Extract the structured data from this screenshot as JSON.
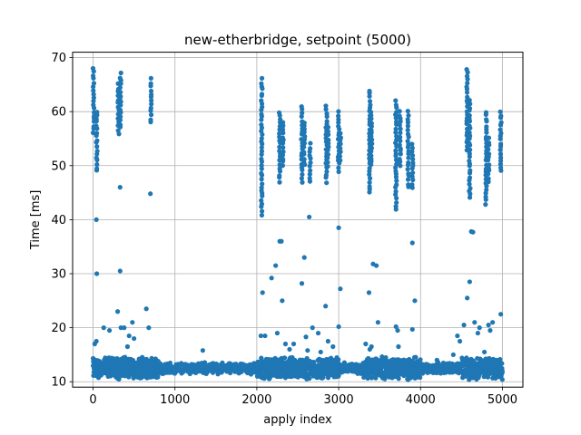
{
  "chart_data": {
    "type": "scatter",
    "title": "new-etherbridge, setpoint (5000)",
    "xlabel": "apply index",
    "ylabel": "Time [ms]",
    "xlim": [
      -250,
      5250
    ],
    "ylim": [
      9,
      71
    ],
    "x_ticks": [
      0,
      1000,
      2000,
      3000,
      4000,
      5000
    ],
    "y_ticks": [
      10,
      20,
      30,
      40,
      50,
      60,
      70
    ],
    "grid": true,
    "marker_color": "#1f77b4",
    "baseline": {
      "x_range": [
        0,
        5000
      ],
      "step": 4,
      "center": 12.5,
      "spread": 1.2,
      "elevated_ranges": [
        [
          0,
          800
        ],
        [
          2000,
          3000
        ],
        [
          3300,
          4000
        ],
        [
          4500,
          5000
        ]
      ],
      "elevated_spread": 2.2
    },
    "clusters": [
      {
        "x": 5,
        "ymin": 56,
        "ymax": 68
      },
      {
        "x": 45,
        "ymin": 49,
        "ymax": 60
      },
      {
        "x": 310,
        "ymin": 56,
        "ymax": 65
      },
      {
        "x": 335,
        "ymin": 57,
        "ymax": 67
      },
      {
        "x": 705,
        "ymin": 58,
        "ymax": 66
      },
      {
        "x": 2060,
        "ymin": 41,
        "ymax": 66
      },
      {
        "x": 2280,
        "ymin": 47,
        "ymax": 60
      },
      {
        "x": 2320,
        "ymin": 50,
        "ymax": 58
      },
      {
        "x": 2550,
        "ymin": 47,
        "ymax": 61
      },
      {
        "x": 2580,
        "ymin": 50,
        "ymax": 58
      },
      {
        "x": 2650,
        "ymin": 47,
        "ymax": 54
      },
      {
        "x": 2850,
        "ymin": 47,
        "ymax": 61
      },
      {
        "x": 2870,
        "ymin": 50,
        "ymax": 57
      },
      {
        "x": 3000,
        "ymin": 49,
        "ymax": 60
      },
      {
        "x": 3020,
        "ymin": 51,
        "ymax": 56
      },
      {
        "x": 3380,
        "ymin": 45,
        "ymax": 64
      },
      {
        "x": 3400,
        "ymin": 50,
        "ymax": 60
      },
      {
        "x": 3700,
        "ymin": 42,
        "ymax": 62
      },
      {
        "x": 3750,
        "ymin": 50,
        "ymax": 60
      },
      {
        "x": 3850,
        "ymin": 46,
        "ymax": 60
      },
      {
        "x": 3900,
        "ymin": 46,
        "ymax": 54
      },
      {
        "x": 4570,
        "ymin": 53,
        "ymax": 68
      },
      {
        "x": 4600,
        "ymin": 44,
        "ymax": 62
      },
      {
        "x": 4800,
        "ymin": 43,
        "ymax": 60
      },
      {
        "x": 4830,
        "ymin": 47,
        "ymax": 55
      },
      {
        "x": 4980,
        "ymin": 49,
        "ymax": 60
      }
    ],
    "points": [
      [
        40,
        40
      ],
      [
        45,
        30
      ],
      [
        330,
        46
      ],
      [
        330,
        30.5
      ],
      [
        700,
        44.8
      ],
      [
        20,
        17
      ],
      [
        40,
        17.5
      ],
      [
        130,
        20
      ],
      [
        200,
        19.5
      ],
      [
        300,
        23
      ],
      [
        340,
        20
      ],
      [
        380,
        20
      ],
      [
        420,
        16.5
      ],
      [
        440,
        18.5
      ],
      [
        480,
        21
      ],
      [
        500,
        18
      ],
      [
        650,
        23.5
      ],
      [
        680,
        20
      ],
      [
        1340,
        15.8
      ],
      [
        2050,
        18.5
      ],
      [
        2070,
        26.5
      ],
      [
        2100,
        18.5
      ],
      [
        2180,
        29.2
      ],
      [
        2230,
        31.5
      ],
      [
        2250,
        19
      ],
      [
        2280,
        36
      ],
      [
        2300,
        36
      ],
      [
        2310,
        25
      ],
      [
        2350,
        17
      ],
      [
        2400,
        16
      ],
      [
        2450,
        17
      ],
      [
        2550,
        28.2
      ],
      [
        2580,
        33
      ],
      [
        2600,
        18.3
      ],
      [
        2620,
        15.8
      ],
      [
        2640,
        40.5
      ],
      [
        2680,
        20
      ],
      [
        2750,
        19
      ],
      [
        2780,
        15.5
      ],
      [
        2840,
        24
      ],
      [
        2870,
        17.5
      ],
      [
        2930,
        16.5
      ],
      [
        3000,
        38.5
      ],
      [
        3000,
        20.2
      ],
      [
        3020,
        27.2
      ],
      [
        3330,
        17
      ],
      [
        3370,
        26.5
      ],
      [
        3380,
        16
      ],
      [
        3400,
        16.5
      ],
      [
        3420,
        31.8
      ],
      [
        3460,
        31.5
      ],
      [
        3480,
        21
      ],
      [
        3700,
        20.2
      ],
      [
        3720,
        19.5
      ],
      [
        3730,
        16.5
      ],
      [
        3900,
        35.7
      ],
      [
        3900,
        19.7
      ],
      [
        3930,
        25
      ],
      [
        4200,
        14
      ],
      [
        4400,
        15
      ],
      [
        4450,
        18.5
      ],
      [
        4480,
        17.5
      ],
      [
        4530,
        20.5
      ],
      [
        4570,
        25.5
      ],
      [
        4600,
        28.5
      ],
      [
        4620,
        37.8
      ],
      [
        4640,
        37.7
      ],
      [
        4660,
        21
      ],
      [
        4700,
        19
      ],
      [
        4720,
        20
      ],
      [
        4780,
        15.5
      ],
      [
        4830,
        20.5
      ],
      [
        4850,
        19.5
      ],
      [
        4880,
        21
      ],
      [
        4980,
        22.5
      ]
    ]
  }
}
